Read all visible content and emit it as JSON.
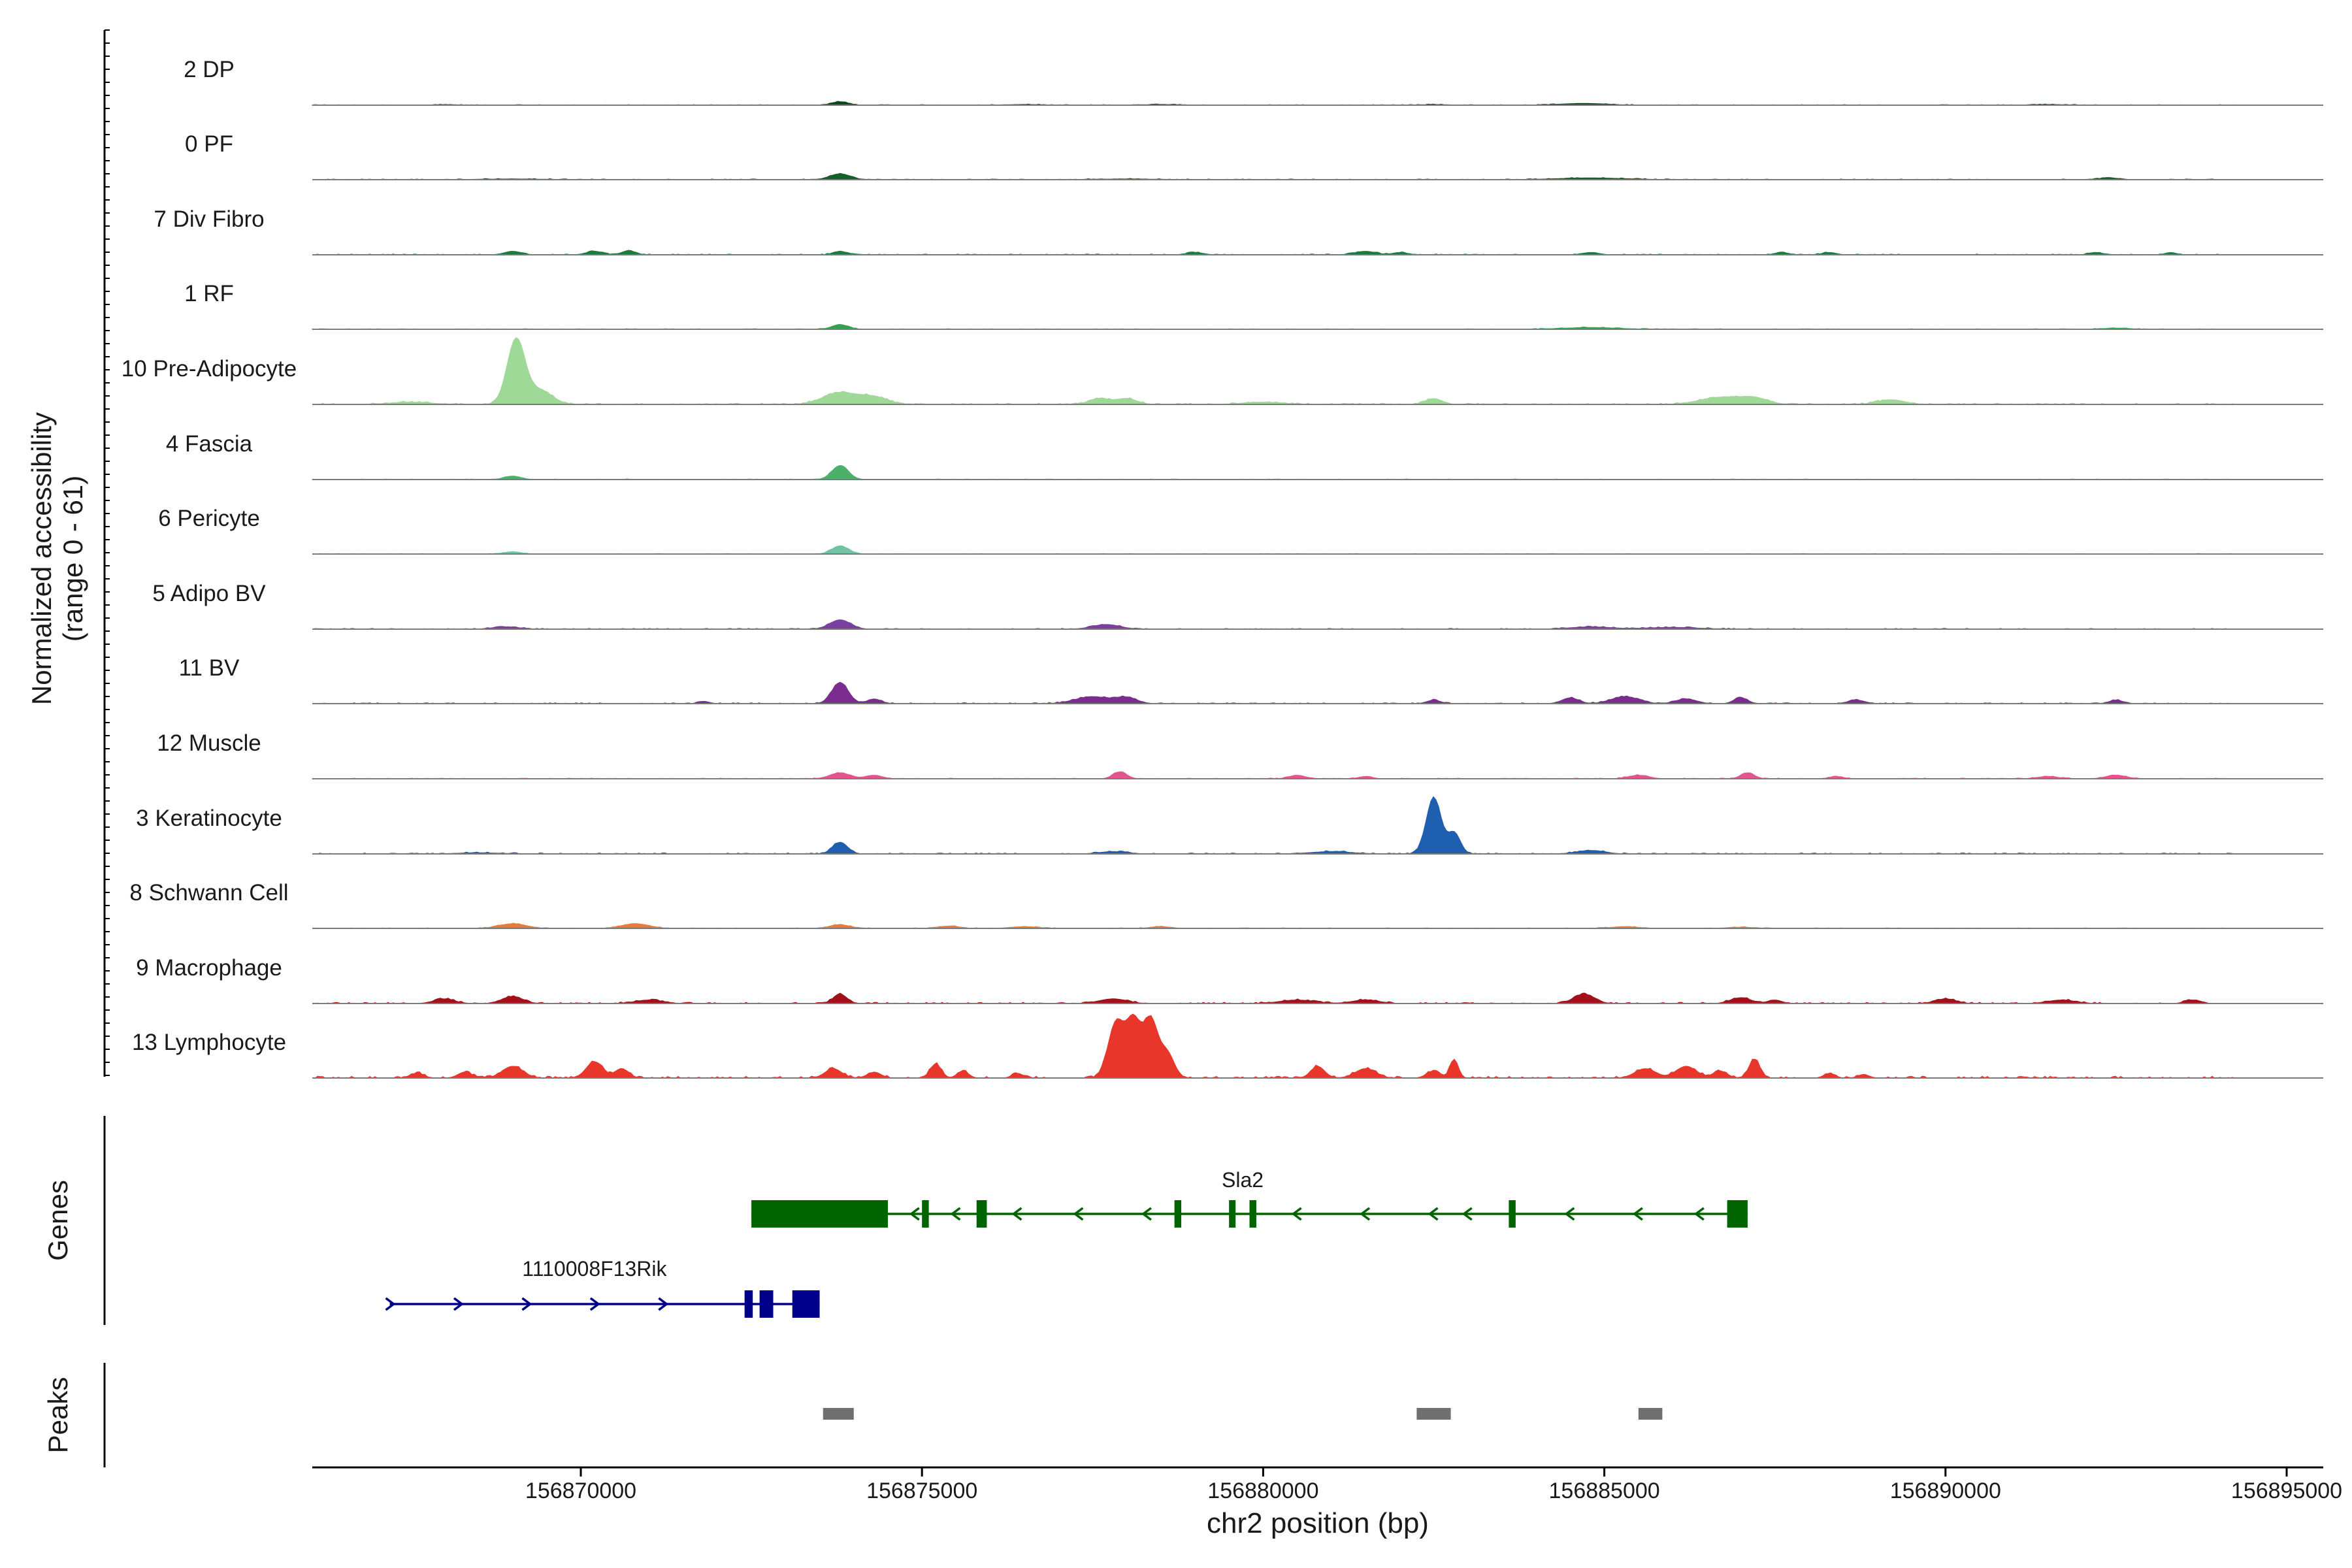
{
  "chart_data": {
    "type": "area",
    "title": "",
    "y_axis_label_line1": "Normalized accessibility",
    "y_axis_label_line2": "(range 0 - 61)",
    "ylim": [
      0,
      61
    ],
    "xlabel": "chr2 position (bp)",
    "xlim": [
      156866000,
      156895000
    ],
    "x_ticks": [
      156870000,
      156875000,
      156880000,
      156885000,
      156890000,
      156895000
    ],
    "x_tick_labels": [
      "156870000",
      "156875000",
      "156880000",
      "156885000",
      "156890000",
      "156895000"
    ],
    "series": [
      {
        "name": "2 DP",
        "color": "#0b4a1e",
        "peaks": [
          [
            156873800,
            3,
            120
          ],
          [
            156884700,
            1.5,
            350
          ],
          [
            156868000,
            0.5,
            200
          ],
          [
            156876500,
            0.6,
            300
          ],
          [
            156878500,
            0.6,
            300
          ],
          [
            156882500,
            0.6,
            200
          ],
          [
            156891500,
            0.6,
            300
          ]
        ],
        "noise": 0.5
      },
      {
        "name": "0 PF",
        "color": "#13612a",
        "peaks": [
          [
            156873800,
            5,
            150
          ],
          [
            156884800,
            1.5,
            500
          ],
          [
            156892400,
            1.5,
            150
          ],
          [
            156869000,
            0.6,
            500
          ],
          [
            156878000,
            0.6,
            500
          ]
        ],
        "noise": 0.6
      },
      {
        "name": "7 Div Fibro",
        "color": "#1f7a3a",
        "peaks": [
          [
            156869000,
            3,
            120
          ],
          [
            156870200,
            3,
            120
          ],
          [
            156870700,
            3.5,
            100
          ],
          [
            156873800,
            3,
            100
          ],
          [
            156879000,
            2,
            120
          ],
          [
            156881500,
            3,
            150
          ],
          [
            156882000,
            2,
            100
          ],
          [
            156884800,
            2,
            120
          ],
          [
            156887600,
            2,
            100
          ],
          [
            156888300,
            2,
            100
          ],
          [
            156892200,
            2,
            100
          ],
          [
            156893300,
            2,
            80
          ]
        ],
        "noise": 0.7
      },
      {
        "name": "1 RF",
        "color": "#34a050",
        "peaks": [
          [
            156873800,
            4,
            120
          ],
          [
            156884800,
            1.5,
            400
          ],
          [
            156892500,
            1,
            200
          ]
        ],
        "noise": 0.5
      },
      {
        "name": "10 Pre-Adipocyte",
        "color": "#9ed998",
        "peaks": [
          [
            156869050,
            55,
            130
          ],
          [
            156869400,
            12,
            180
          ],
          [
            156873800,
            10,
            250
          ],
          [
            156874300,
            6,
            200
          ],
          [
            156877600,
            5,
            150
          ],
          [
            156878000,
            5,
            150
          ],
          [
            156882500,
            5,
            120
          ],
          [
            156886700,
            6,
            300
          ],
          [
            156887200,
            5,
            200
          ],
          [
            156889200,
            4,
            200
          ],
          [
            156867500,
            2,
            300
          ],
          [
            156880000,
            2,
            300
          ]
        ],
        "noise": 1.0
      },
      {
        "name": "4 Fascia",
        "color": "#4db06a",
        "peaks": [
          [
            156873800,
            12,
            120
          ],
          [
            156869000,
            3,
            120
          ]
        ],
        "noise": 0.5
      },
      {
        "name": "6 Pericyte",
        "color": "#6fc4a4",
        "peaks": [
          [
            156873800,
            7,
            120
          ],
          [
            156869000,
            2,
            120
          ]
        ],
        "noise": 0.5
      },
      {
        "name": "5 Adipo BV",
        "color": "#7b3fa3",
        "peaks": [
          [
            156873800,
            8,
            150
          ],
          [
            156877700,
            4,
            200
          ],
          [
            156868900,
            2,
            200
          ],
          [
            156884800,
            2,
            300
          ],
          [
            156886000,
            1.5,
            400
          ]
        ],
        "noise": 0.7
      },
      {
        "name": "11 BV",
        "color": "#7b2c8f",
        "peaks": [
          [
            156873800,
            18,
            120
          ],
          [
            156874300,
            4,
            100
          ],
          [
            156877500,
            6,
            250
          ],
          [
            156878000,
            5,
            150
          ],
          [
            156885300,
            6,
            200
          ],
          [
            156886200,
            4,
            150
          ],
          [
            156887000,
            5,
            100
          ],
          [
            156884500,
            5,
            120
          ],
          [
            156882500,
            3,
            100
          ],
          [
            156888700,
            3,
            120
          ],
          [
            156892500,
            3,
            100
          ],
          [
            156871800,
            2,
            80
          ]
        ],
        "noise": 0.8
      },
      {
        "name": "12 Muscle",
        "color": "#e8538d",
        "peaks": [
          [
            156873800,
            5,
            150
          ],
          [
            156874300,
            3,
            120
          ],
          [
            156877900,
            6,
            100
          ],
          [
            156880500,
            3,
            120
          ],
          [
            156881500,
            2,
            100
          ],
          [
            156885500,
            3,
            150
          ],
          [
            156887100,
            5,
            100
          ],
          [
            156888400,
            2,
            100
          ],
          [
            156891500,
            2,
            150
          ],
          [
            156892500,
            3,
            150
          ]
        ],
        "noise": 0.6
      },
      {
        "name": "3 Keratinocyte",
        "color": "#1f5fb0",
        "peaks": [
          [
            156882500,
            48,
            110
          ],
          [
            156882800,
            18,
            90
          ],
          [
            156873800,
            10,
            110
          ],
          [
            156884800,
            3,
            200
          ],
          [
            156877800,
            2,
            200
          ],
          [
            156881000,
            2,
            300
          ],
          [
            156868500,
            1,
            300
          ]
        ],
        "noise": 0.9
      },
      {
        "name": "8 Schwann Cell",
        "color": "#e87b3a",
        "peaks": [
          [
            156869000,
            4,
            200
          ],
          [
            156870800,
            4,
            200
          ],
          [
            156873800,
            3,
            150
          ],
          [
            156875400,
            2,
            150
          ],
          [
            156876500,
            1.5,
            200
          ],
          [
            156878500,
            1.5,
            150
          ],
          [
            156885300,
            1.5,
            200
          ],
          [
            156887000,
            1,
            200
          ]
        ],
        "noise": 0.5
      },
      {
        "name": "9 Macrophage",
        "color": "#a3101a",
        "peaks": [
          [
            156869000,
            6,
            150
          ],
          [
            156873800,
            8,
            100
          ],
          [
            156877800,
            4,
            200
          ],
          [
            156884700,
            8,
            150
          ],
          [
            156887000,
            5,
            150
          ],
          [
            156887500,
            3,
            100
          ],
          [
            156890000,
            4,
            150
          ],
          [
            156891700,
            3,
            200
          ],
          [
            156893600,
            3,
            100
          ],
          [
            156868000,
            4,
            150
          ],
          [
            156871000,
            3,
            200
          ],
          [
            156880500,
            3,
            250
          ],
          [
            156881500,
            3,
            200
          ]
        ],
        "noise": 1.0
      },
      {
        "name": "13 Lymphocyte",
        "color": "#e8362a",
        "peaks": [
          [
            156877850,
            48,
            120
          ],
          [
            156878100,
            45,
            100
          ],
          [
            156878350,
            50,
            110
          ],
          [
            156878600,
            20,
            100
          ],
          [
            156875200,
            12,
            80
          ],
          [
            156875600,
            6,
            80
          ],
          [
            156880800,
            10,
            100
          ],
          [
            156881500,
            8,
            150
          ],
          [
            156882500,
            6,
            100
          ],
          [
            156882800,
            16,
            60
          ],
          [
            156885600,
            8,
            150
          ],
          [
            156886200,
            10,
            150
          ],
          [
            156887200,
            16,
            80
          ],
          [
            156869000,
            10,
            150
          ],
          [
            156870200,
            14,
            120
          ],
          [
            156870600,
            8,
            100
          ],
          [
            156873700,
            8,
            120
          ],
          [
            156874300,
            5,
            100
          ],
          [
            156868300,
            5,
            100
          ],
          [
            156867600,
            4,
            100
          ],
          [
            156876400,
            4,
            80
          ],
          [
            156886700,
            6,
            100
          ],
          [
            156888300,
            4,
            80
          ],
          [
            156888800,
            3,
            80
          ]
        ],
        "noise": 1.5
      }
    ],
    "genes_label": "Genes",
    "peaks_label": "Peaks",
    "genes": [
      {
        "name": "Sla2",
        "strand": "-",
        "color": "#006400",
        "start": 156872500,
        "end": 156887100,
        "row": 0,
        "exons": [
          [
            156872500,
            156874500
          ],
          [
            156875000,
            156875100
          ],
          [
            156875800,
            156875950
          ],
          [
            156878700,
            156878800
          ],
          [
            156879500,
            156879550
          ],
          [
            156879800,
            156879900
          ],
          [
            156883600,
            156883700
          ],
          [
            156886800,
            156887100
          ]
        ],
        "arrows": [
          156874900,
          156875500,
          156876400,
          156877300,
          156878300,
          156880500,
          156881500,
          156882500,
          156883000,
          156884500,
          156885500,
          156886400
        ]
      },
      {
        "name": "1110008F13Rik",
        "strand": "+",
        "color": "#00008b",
        "start": 156867200,
        "end": 156873500,
        "row": 1,
        "exons": [
          [
            156872400,
            156872520
          ],
          [
            156872620,
            156872820
          ],
          [
            156873100,
            156873500
          ]
        ],
        "arrows": [
          156867200,
          156868200,
          156869200,
          156870200,
          156871200
        ]
      }
    ],
    "peak_regions": [
      [
        156873550,
        156874000
      ],
      [
        156882250,
        156882750
      ],
      [
        156885500,
        156885850
      ]
    ]
  }
}
